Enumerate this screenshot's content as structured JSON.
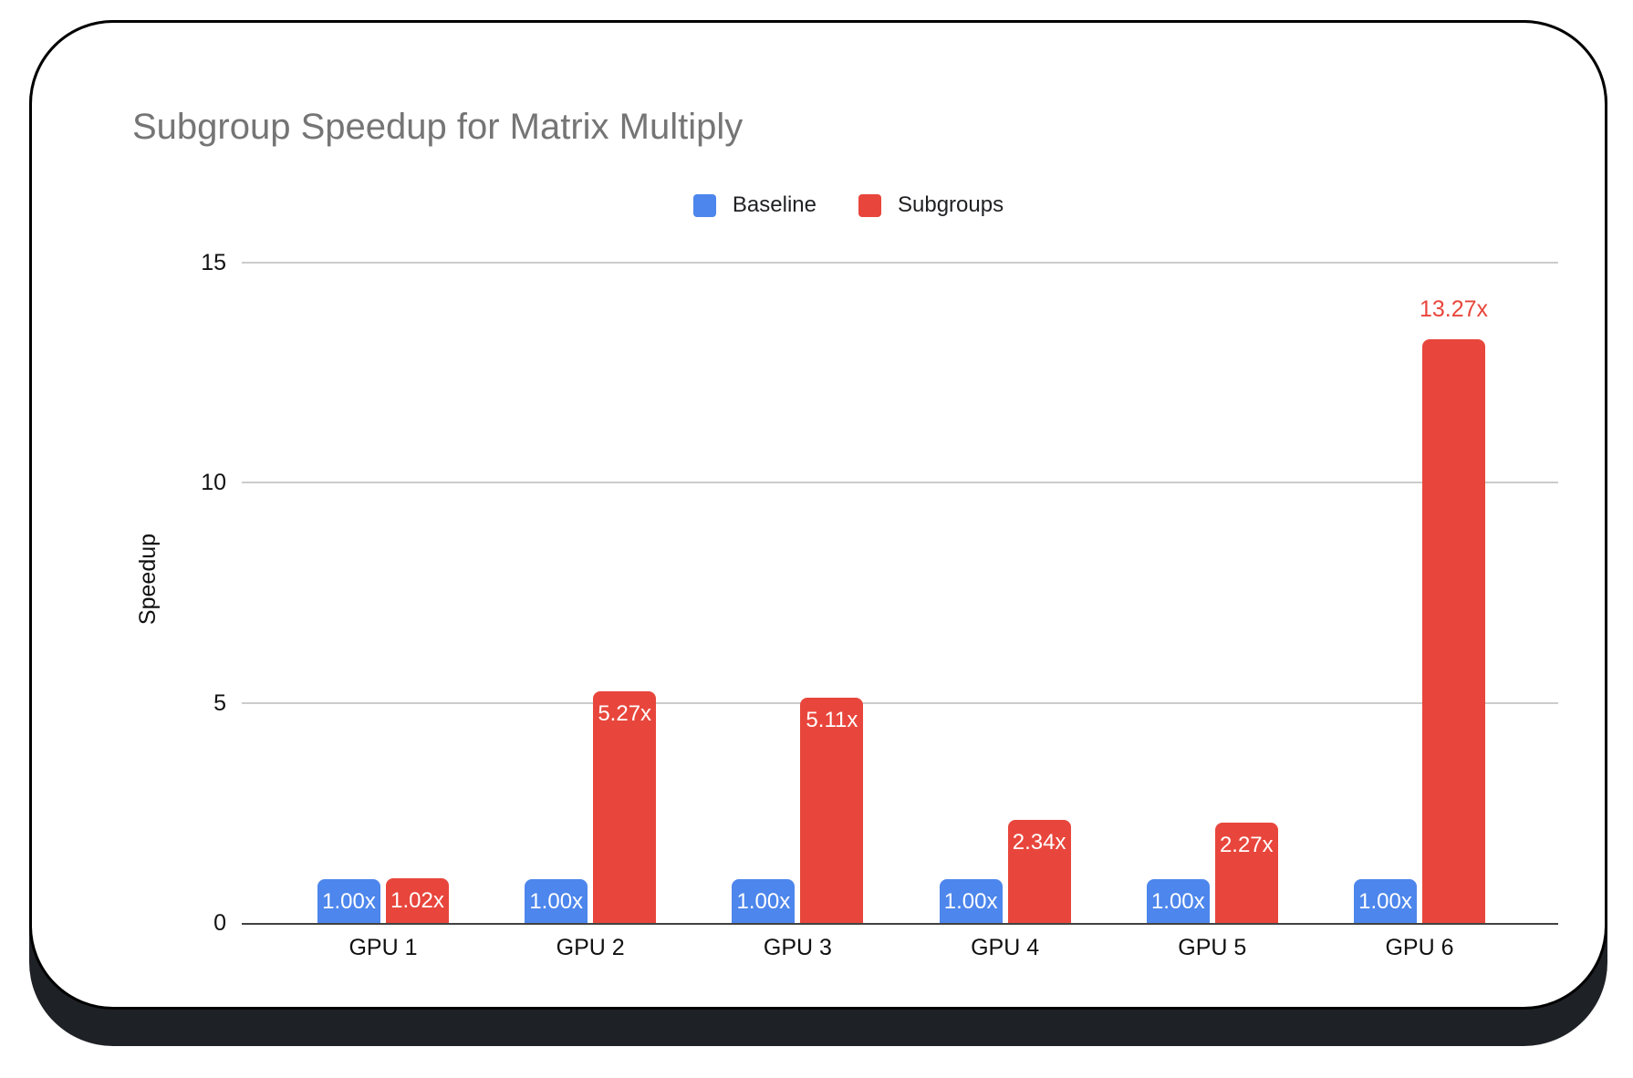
{
  "chart_data": {
    "type": "bar",
    "title": "Subgroup Speedup for Matrix Multiply",
    "xlabel": "",
    "ylabel": "Speedup",
    "categories": [
      "GPU 1",
      "GPU 2",
      "GPU 3",
      "GPU 4",
      "GPU 5",
      "GPU 6"
    ],
    "series": [
      {
        "name": "Baseline",
        "color": "#4D86EC",
        "values": [
          1.0,
          1.0,
          1.0,
          1.0,
          1.0,
          1.0
        ],
        "bar_labels": [
          "1.00x",
          "1.00x",
          "1.00x",
          "1.00x",
          "1.00x",
          "1.00x"
        ],
        "label_placement": [
          "inside",
          "inside",
          "inside",
          "inside",
          "inside",
          "inside"
        ]
      },
      {
        "name": "Subgroups",
        "color": "#E8463C",
        "values": [
          1.02,
          5.27,
          5.11,
          2.34,
          2.27,
          13.27
        ],
        "bar_labels": [
          "1.02x",
          "5.27x",
          "5.11x",
          "2.34x",
          "2.27x",
          "13.27x"
        ],
        "label_placement": [
          "inside",
          "inside",
          "inside",
          "inside",
          "inside",
          "outside"
        ]
      }
    ],
    "ylim": [
      0,
      15
    ],
    "yticks": [
      0,
      5,
      10,
      15
    ],
    "grid": true,
    "legend_position": "top"
  },
  "colors": {
    "baseline": "#4D86EC",
    "subgroups": "#E8463C",
    "title_text": "#757575",
    "axis_text": "#111111",
    "gridline": "#cccccc",
    "axis_line": "#424242",
    "bar_label_inside": "#ffffff",
    "bar_label_outside": "#E8463C",
    "card_background": "#ffffff",
    "card_border": "#000000",
    "card_shadow": "#1E2126"
  }
}
